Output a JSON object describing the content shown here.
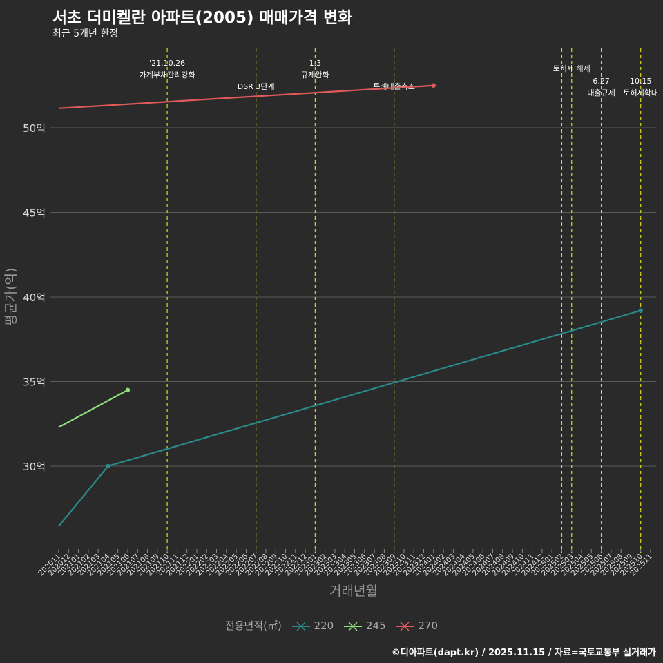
{
  "chart_data": {
    "type": "line",
    "title": "서초 더미켈란 아파트(2005) 매매가격 변화",
    "subtitle": "최근 5개년 한정",
    "xlabel": "거래년월",
    "ylabel": "평균가(억)",
    "ylim": [
      25.3,
      54.9
    ],
    "yticks": [
      30,
      35,
      40,
      45,
      50
    ],
    "ytick_labels": [
      "30억",
      "35억",
      "40억",
      "45억",
      "50억"
    ],
    "x": [
      "202011",
      "202012",
      "202101",
      "202102",
      "202103",
      "202104",
      "202105",
      "202106",
      "202107",
      "202108",
      "202109",
      "202110",
      "202111",
      "202112",
      "202201",
      "202202",
      "202203",
      "202204",
      "202205",
      "202206",
      "202207",
      "202208",
      "202209",
      "202210",
      "202211",
      "202212",
      "202301",
      "202302",
      "202303",
      "202304",
      "202305",
      "202306",
      "202307",
      "202308",
      "202309",
      "202310",
      "202311",
      "202312",
      "202401",
      "202402",
      "202403",
      "202404",
      "202405",
      "202406",
      "202407",
      "202408",
      "202409",
      "202410",
      "202411",
      "202412",
      "202501",
      "202502",
      "202503",
      "202504",
      "202505",
      "202506",
      "202507",
      "202508",
      "202509",
      "202510",
      "202511"
    ],
    "legend_title": "전용면적(㎡)",
    "legend_position": "bottom",
    "series": [
      {
        "name": "220",
        "color": "#2a8c8a",
        "points": [
          [
            "202011",
            26.45
          ],
          [
            "202104",
            30.0
          ],
          [
            "202510",
            39.2
          ]
        ]
      },
      {
        "name": "245",
        "color": "#8fe07a",
        "points": [
          [
            "202011",
            32.3
          ],
          [
            "202106",
            34.5
          ]
        ]
      },
      {
        "name": "270",
        "color": "#e05a5a",
        "points": [
          [
            "202011",
            51.15
          ],
          [
            "202401",
            52.5
          ]
        ]
      }
    ],
    "events": [
      {
        "x": "202110",
        "lines": [
          "'21.10.26",
          "가계부채관리강화"
        ],
        "row": 0
      },
      {
        "x": "202207",
        "lines": [
          "DSR 3단계"
        ],
        "row": 2
      },
      {
        "x": "202301",
        "lines": [
          "1.3",
          "규제완화"
        ],
        "row": 0
      },
      {
        "x": "202309",
        "lines": [
          "특례대출축소"
        ],
        "row": 2
      },
      {
        "x": "202502",
        "lines": [],
        "row": 0
      },
      {
        "x": "202503",
        "lines": [
          "토허제 해제"
        ],
        "row": 1
      },
      {
        "x": "202506",
        "lines": [
          "6.27",
          "대출규제"
        ],
        "row": 1.5
      },
      {
        "x": "202510",
        "lines": [
          "10.15",
          "토허제확대"
        ],
        "row": 1.5
      }
    ]
  },
  "caption": "©디아파트(dapt.kr) / 2025.11.15 / 자료=국토교통부 실거래가"
}
